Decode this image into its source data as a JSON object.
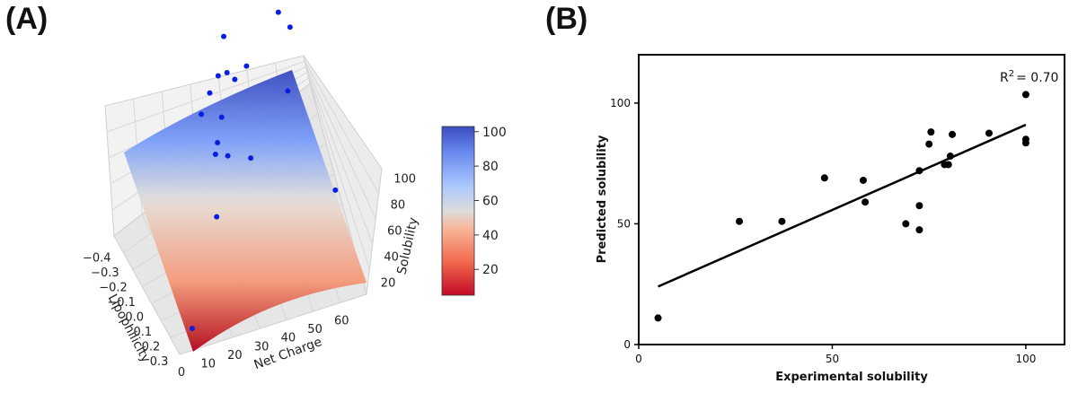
{
  "panels": {
    "a_label": "(A)",
    "b_label": "(B)"
  },
  "chart_data": [
    {
      "type": "surface3d",
      "panel": "A",
      "xlabel": "Net Charge",
      "ylabel": "Lipophilicity",
      "zlabel": "Solubility",
      "x_ticks": [
        "0",
        "10",
        "20",
        "30",
        "40",
        "50",
        "60"
      ],
      "y_ticks": [
        "−0.4",
        "−0.3",
        "−0.2",
        "−0.1",
        "0.0",
        "0.1",
        "0.2",
        "0.3"
      ],
      "z_ticks": [
        "20",
        "40",
        "60",
        "80",
        "100"
      ],
      "xlim": [
        0,
        70
      ],
      "ylim": [
        -0.45,
        0.35
      ],
      "zlim": [
        10,
        110
      ],
      "colormap": "coolwarm_r",
      "colorbar": {
        "ticks": [
          "20",
          "40",
          "60",
          "80",
          "100"
        ],
        "range": [
          5,
          103
        ]
      },
      "points": [
        {
          "x": 68,
          "y": -0.44,
          "z": 104
        },
        {
          "x": 60,
          "y": -0.4,
          "z": 99
        },
        {
          "x": 65,
          "y": -0.42,
          "z": 88
        },
        {
          "x": 38,
          "y": -0.35,
          "z": 100
        },
        {
          "x": 45,
          "y": -0.3,
          "z": 86
        },
        {
          "x": 40,
          "y": -0.28,
          "z": 83
        },
        {
          "x": 35,
          "y": -0.32,
          "z": 84
        },
        {
          "x": 38,
          "y": -0.31,
          "z": 85
        },
        {
          "x": 30,
          "y": -0.26,
          "z": 82
        },
        {
          "x": 25,
          "y": -0.2,
          "z": 78
        },
        {
          "x": 32,
          "y": -0.18,
          "z": 75
        },
        {
          "x": 58,
          "y": -0.22,
          "z": 74
        },
        {
          "x": 28,
          "y": -0.1,
          "z": 70
        },
        {
          "x": 26,
          "y": -0.06,
          "z": 68
        },
        {
          "x": 30,
          "y": -0.04,
          "z": 67
        },
        {
          "x": 38,
          "y": -0.02,
          "z": 64
        },
        {
          "x": 20,
          "y": 0.15,
          "z": 55
        },
        {
          "x": 66,
          "y": 0.1,
          "z": 45
        },
        {
          "x": 5,
          "y": 0.34,
          "z": 20
        }
      ]
    },
    {
      "type": "scatter",
      "panel": "B",
      "xlabel": "Experimental solubility",
      "ylabel": "Predicted solubility",
      "annotation": {
        "prefix": "R",
        "sup": "2",
        "suffix": "= 0.70"
      },
      "xlim": [
        0,
        110
      ],
      "ylim": [
        0,
        120
      ],
      "x_ticks": [
        0,
        50,
        100
      ],
      "y_ticks": [
        0,
        50,
        100
      ],
      "points": [
        [
          5,
          11
        ],
        [
          26,
          51
        ],
        [
          37,
          51
        ],
        [
          48,
          69
        ],
        [
          58,
          68
        ],
        [
          58.5,
          59
        ],
        [
          69,
          50
        ],
        [
          72.5,
          72
        ],
        [
          72.5,
          57.5
        ],
        [
          72.5,
          47.5
        ],
        [
          75,
          83
        ],
        [
          75.5,
          88
        ],
        [
          79,
          74.5
        ],
        [
          80,
          74.5
        ],
        [
          80.5,
          78
        ],
        [
          81,
          87
        ],
        [
          90.5,
          87.5
        ],
        [
          100,
          103.5
        ],
        [
          100,
          85
        ],
        [
          100,
          83.5
        ]
      ],
      "fit_line": {
        "x": [
          5,
          100
        ],
        "y": [
          24,
          91
        ]
      }
    }
  ]
}
